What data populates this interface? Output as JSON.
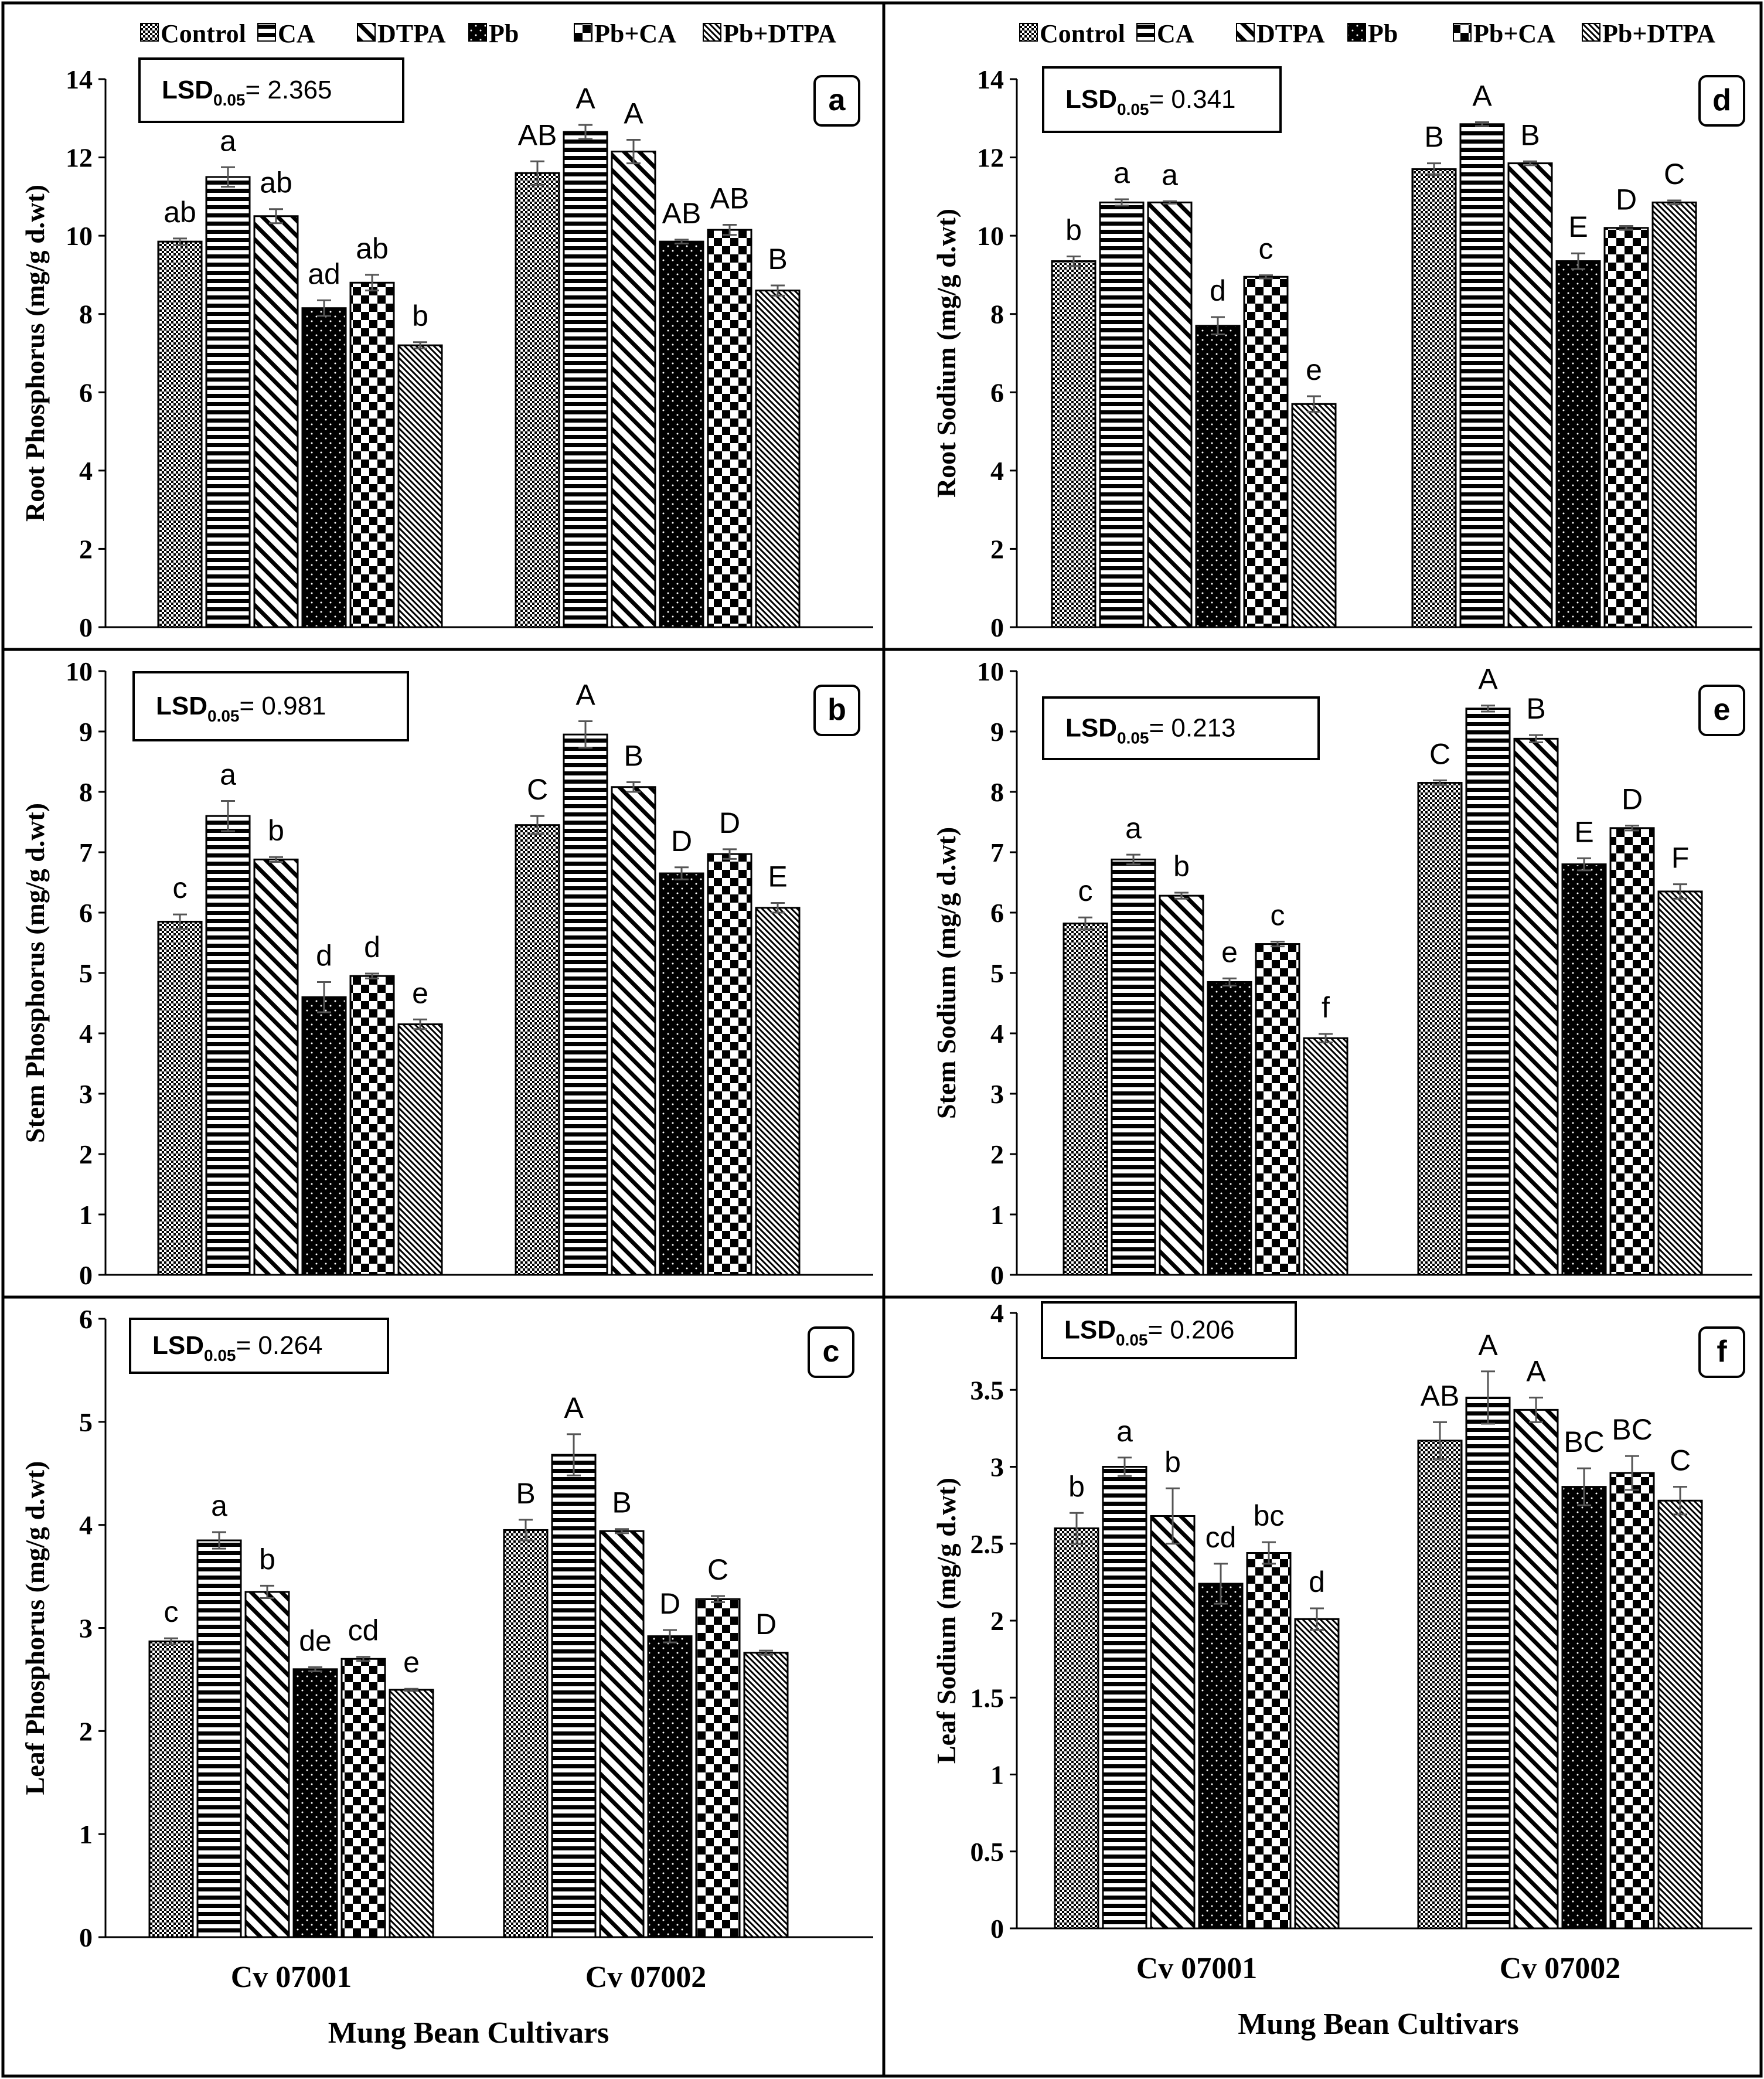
{
  "legend": [
    {
      "name": "Control",
      "pattern": "control"
    },
    {
      "name": "CA",
      "pattern": "ca"
    },
    {
      "name": "DTPA",
      "pattern": "dtpa"
    },
    {
      "name": "Pb",
      "pattern": "pb"
    },
    {
      "name": "Pb+CA",
      "pattern": "pbca"
    },
    {
      "name": "Pb+DTPA",
      "pattern": "pbdtpa"
    }
  ],
  "x_axis_title": "Mung Bean Cultivars",
  "colors": {
    "ink": "#000000",
    "background": "#ffffff",
    "error_bar": "#555555"
  },
  "chart_data": [
    {
      "panel": "a",
      "type": "bar",
      "ylabel": "Root Phosphorus (mg/g d.wt)",
      "lsd": {
        "prefix": "LSD",
        "subscript": "0.05",
        "value": "= 2.365"
      },
      "categories": [
        "Cv 07001",
        "Cv 07002"
      ],
      "ylim": [
        0,
        14
      ],
      "yticks": [
        0,
        2,
        4,
        6,
        8,
        10,
        12,
        14
      ],
      "series": [
        {
          "name": "Control",
          "values": [
            9.85,
            11.6
          ],
          "errors": [
            0.08,
            0.3
          ],
          "letters": [
            "ab",
            "AB"
          ]
        },
        {
          "name": "CA",
          "values": [
            11.5,
            12.65
          ],
          "errors": [
            0.25,
            0.18
          ],
          "letters": [
            "a",
            "A"
          ]
        },
        {
          "name": "DTPA",
          "values": [
            10.5,
            12.15
          ],
          "errors": [
            0.18,
            0.3
          ],
          "letters": [
            "ab",
            "A"
          ]
        },
        {
          "name": "Pb",
          "values": [
            8.15,
            9.85
          ],
          "errors": [
            0.2,
            0.05
          ],
          "letters": [
            "ad",
            "AB"
          ]
        },
        {
          "name": "Pb+CA",
          "values": [
            8.8,
            10.15
          ],
          "errors": [
            0.2,
            0.13
          ],
          "letters": [
            "ab",
            "AB"
          ]
        },
        {
          "name": "Pb+DTPA",
          "values": [
            7.2,
            8.6
          ],
          "errors": [
            0.08,
            0.13
          ],
          "letters": [
            "b",
            "B"
          ]
        }
      ]
    },
    {
      "panel": "b",
      "type": "bar",
      "ylabel": "Stem Phosphorus (mg/g d.wt)",
      "lsd": {
        "prefix": "LSD",
        "subscript": "0.05",
        "value": "= 0.981"
      },
      "categories": [
        "Cv 07001",
        "Cv 07002"
      ],
      "ylim": [
        0,
        10
      ],
      "yticks": [
        0,
        1,
        2,
        3,
        4,
        5,
        6,
        7,
        8,
        9,
        10
      ],
      "series": [
        {
          "name": "Control",
          "values": [
            5.85,
            7.45
          ],
          "errors": [
            0.12,
            0.15
          ],
          "letters": [
            "c",
            "C"
          ]
        },
        {
          "name": "CA",
          "values": [
            7.6,
            8.95
          ],
          "errors": [
            0.25,
            0.22
          ],
          "letters": [
            "a",
            "A"
          ]
        },
        {
          "name": "DTPA",
          "values": [
            6.88,
            8.08
          ],
          "errors": [
            0.04,
            0.08
          ],
          "letters": [
            "b",
            "B"
          ]
        },
        {
          "name": "Pb",
          "values": [
            4.6,
            6.65
          ],
          "errors": [
            0.25,
            0.1
          ],
          "letters": [
            "d",
            "D"
          ]
        },
        {
          "name": "Pb+CA",
          "values": [
            4.95,
            6.97
          ],
          "errors": [
            0.04,
            0.08
          ],
          "letters": [
            "d",
            "D"
          ]
        },
        {
          "name": "Pb+DTPA",
          "values": [
            4.15,
            6.08
          ],
          "errors": [
            0.08,
            0.08
          ],
          "letters": [
            "e",
            "E"
          ]
        }
      ]
    },
    {
      "panel": "c",
      "type": "bar",
      "ylabel": "Leaf Phosphorus (mg/g d.wt)",
      "lsd": {
        "prefix": "LSD",
        "subscript": "0.05",
        "value": "= 0.264"
      },
      "categories": [
        "Cv 07001",
        "Cv 07002"
      ],
      "xtick_labels": [
        "Cv 07001",
        "Cv 07002"
      ],
      "ylim": [
        0,
        6
      ],
      "yticks": [
        0,
        1,
        2,
        3,
        4,
        5,
        6
      ],
      "series": [
        {
          "name": "Control",
          "values": [
            2.87,
            3.95
          ],
          "errors": [
            0.03,
            0.1
          ],
          "letters": [
            "c",
            "B"
          ]
        },
        {
          "name": "CA",
          "values": [
            3.85,
            4.68
          ],
          "errors": [
            0.08,
            0.2
          ],
          "letters": [
            "a",
            "A"
          ]
        },
        {
          "name": "DTPA",
          "values": [
            3.35,
            3.94
          ],
          "errors": [
            0.06,
            0.02
          ],
          "letters": [
            "b",
            "B"
          ]
        },
        {
          "name": "Pb",
          "values": [
            2.6,
            2.92
          ],
          "errors": [
            0.02,
            0.06
          ],
          "letters": [
            "de",
            "D"
          ]
        },
        {
          "name": "Pb+CA",
          "values": [
            2.7,
            3.28
          ],
          "errors": [
            0.02,
            0.03
          ],
          "letters": [
            "cd",
            "C"
          ]
        },
        {
          "name": "Pb+DTPA",
          "values": [
            2.4,
            2.76
          ],
          "errors": [
            0.01,
            0.02
          ],
          "letters": [
            "e",
            "D"
          ]
        }
      ]
    },
    {
      "panel": "d",
      "type": "bar",
      "ylabel": "Root Sodium (mg/g d.wt)",
      "lsd": {
        "prefix": "LSD",
        "subscript": "0.05",
        "value": "= 0.341"
      },
      "categories": [
        "Cv 07001",
        "Cv 07002"
      ],
      "ylim": [
        0,
        14
      ],
      "yticks": [
        0,
        2,
        4,
        6,
        8,
        10,
        12,
        14
      ],
      "series": [
        {
          "name": "Control",
          "values": [
            9.35,
            11.7
          ],
          "errors": [
            0.12,
            0.15
          ],
          "letters": [
            "b",
            "B"
          ]
        },
        {
          "name": "CA",
          "values": [
            10.85,
            12.85
          ],
          "errors": [
            0.08,
            0.05
          ],
          "letters": [
            "a",
            "A"
          ]
        },
        {
          "name": "DTPA",
          "values": [
            10.85,
            11.85
          ],
          "errors": [
            0.03,
            0.05
          ],
          "letters": [
            "a",
            "B"
          ]
        },
        {
          "name": "Pb",
          "values": [
            7.7,
            9.35
          ],
          "errors": [
            0.22,
            0.2
          ],
          "letters": [
            "d",
            "E"
          ]
        },
        {
          "name": "Pb+CA",
          "values": [
            8.95,
            10.2
          ],
          "errors": [
            0.04,
            0.05
          ],
          "letters": [
            "c",
            "D"
          ]
        },
        {
          "name": "Pb+DTPA",
          "values": [
            5.7,
            10.85
          ],
          "errors": [
            0.2,
            0.05
          ],
          "letters": [
            "e",
            "C"
          ]
        }
      ]
    },
    {
      "panel": "e",
      "type": "bar",
      "ylabel": "Stem Sodium (mg/g d.wt)",
      "lsd": {
        "prefix": "LSD",
        "subscript": "0.05",
        "value": "= 0.213"
      },
      "categories": [
        "Cv 07001",
        "Cv 07002"
      ],
      "ylim": [
        0,
        10
      ],
      "yticks": [
        0,
        1,
        2,
        3,
        4,
        5,
        6,
        7,
        8,
        9,
        10
      ],
      "series": [
        {
          "name": "Control",
          "values": [
            5.82,
            8.15
          ],
          "errors": [
            0.1,
            0.04
          ],
          "letters": [
            "c",
            "C"
          ]
        },
        {
          "name": "CA",
          "values": [
            6.88,
            9.38
          ],
          "errors": [
            0.08,
            0.05
          ],
          "letters": [
            "a",
            "A"
          ]
        },
        {
          "name": "DTPA",
          "values": [
            6.28,
            8.88
          ],
          "errors": [
            0.05,
            0.06
          ],
          "letters": [
            "b",
            "B"
          ]
        },
        {
          "name": "Pb",
          "values": [
            4.85,
            6.8
          ],
          "errors": [
            0.06,
            0.1
          ],
          "letters": [
            "e",
            "E"
          ]
        },
        {
          "name": "Pb+CA",
          "values": [
            5.48,
            7.4
          ],
          "errors": [
            0.04,
            0.04
          ],
          "letters": [
            "c",
            "D"
          ]
        },
        {
          "name": "Pb+DTPA",
          "values": [
            3.92,
            6.35
          ],
          "errors": [
            0.07,
            0.12
          ],
          "letters": [
            "f",
            "F"
          ]
        }
      ]
    },
    {
      "panel": "f",
      "type": "bar",
      "ylabel": "Leaf Sodium (mg/g d.wt)",
      "lsd": {
        "prefix": "LSD",
        "subscript": "0.05",
        "value": "= 0.206"
      },
      "categories": [
        "Cv 07001",
        "Cv 07002"
      ],
      "xtick_labels": [
        "Cv 07001",
        "Cv 07002"
      ],
      "ylim": [
        0,
        4
      ],
      "yticks": [
        "0",
        "0.5",
        "1",
        "1.5",
        "2",
        "2.5",
        "3",
        "3.5",
        "4"
      ],
      "series": [
        {
          "name": "Control",
          "values": [
            2.6,
            3.17
          ],
          "errors": [
            0.1,
            0.12
          ],
          "letters": [
            "b",
            "AB"
          ]
        },
        {
          "name": "CA",
          "values": [
            3.0,
            3.45
          ],
          "errors": [
            0.06,
            0.17
          ],
          "letters": [
            "a",
            "A"
          ]
        },
        {
          "name": "DTPA",
          "values": [
            2.68,
            3.37
          ],
          "errors": [
            0.18,
            0.08
          ],
          "letters": [
            "b",
            "A"
          ]
        },
        {
          "name": "Pb",
          "values": [
            2.24,
            2.87
          ],
          "errors": [
            0.13,
            0.12
          ],
          "letters": [
            "cd",
            "BC"
          ]
        },
        {
          "name": "Pb+CA",
          "values": [
            2.44,
            2.96
          ],
          "errors": [
            0.07,
            0.11
          ],
          "letters": [
            "bc",
            "BC"
          ]
        },
        {
          "name": "Pb+DTPA",
          "values": [
            2.01,
            2.78
          ],
          "errors": [
            0.07,
            0.09
          ],
          "letters": [
            "d",
            "C"
          ]
        }
      ]
    }
  ]
}
